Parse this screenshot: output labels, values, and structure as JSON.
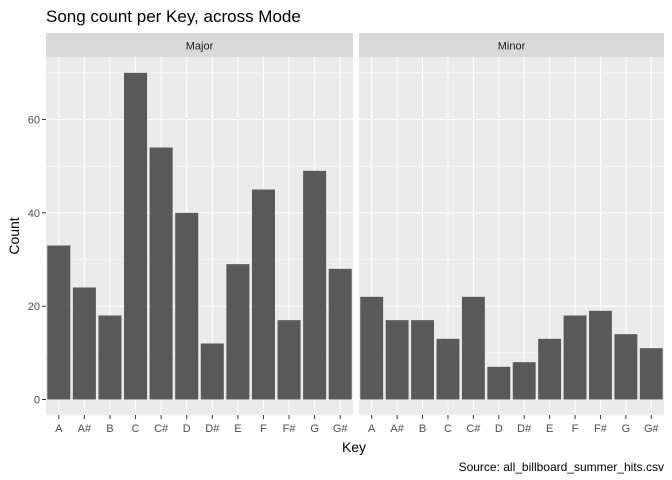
{
  "chart_data": {
    "type": "bar",
    "title": "Song count per Key, across Mode",
    "xlabel": "Key",
    "ylabel": "Count",
    "caption": "Source: all_billboard_summer_hits.csv",
    "categories": [
      "A",
      "A#",
      "B",
      "C",
      "C#",
      "D",
      "D#",
      "E",
      "F",
      "F#",
      "G",
      "G#"
    ],
    "y_ticks": [
      0,
      20,
      40,
      60
    ],
    "ylim": [
      0,
      72
    ],
    "facets": [
      {
        "name": "Major",
        "values": [
          33,
          24,
          18,
          70,
          54,
          40,
          12,
          29,
          45,
          17,
          49,
          28
        ]
      },
      {
        "name": "Minor",
        "values": [
          22,
          17,
          17,
          13,
          22,
          7,
          8,
          13,
          18,
          19,
          14,
          11
        ]
      }
    ],
    "grid": true,
    "colors": {
      "bar": "#595959",
      "panel": "#ebebeb",
      "strip": "#d9d9d9",
      "grid": "#ffffff"
    }
  }
}
